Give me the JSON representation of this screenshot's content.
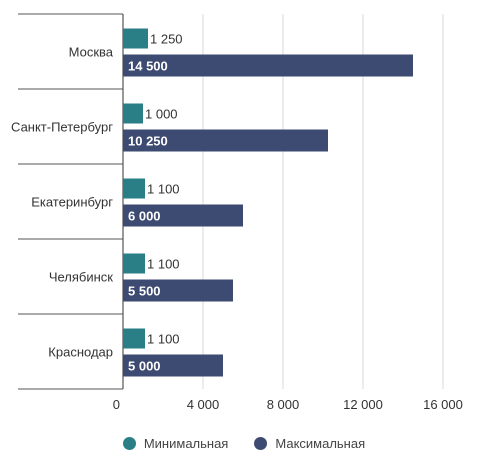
{
  "chart_data": {
    "type": "bar",
    "orientation": "horizontal",
    "categories": [
      "Москва",
      "Санкт-Петербург",
      "Екатеринбург",
      "Челябинск",
      "Краснодар"
    ],
    "series": [
      {
        "name": "Минимальная",
        "color": "#2a7f86",
        "values": [
          1250,
          1000,
          1100,
          1100,
          1100
        ],
        "labels": [
          "1 250",
          "1 000",
          "1 100",
          "1 100",
          "1 100"
        ]
      },
      {
        "name": "Максимальная",
        "color": "#3d4a72",
        "values": [
          14500,
          10250,
          6000,
          5500,
          5000
        ],
        "labels": [
          "14 500",
          "10 250",
          "6 000",
          "5 500",
          "5 000"
        ]
      }
    ],
    "x_ticks": [
      0,
      4000,
      8000,
      12000,
      16000
    ],
    "x_tick_labels": [
      "0",
      "4 000",
      "8 000",
      "12 000",
      "16 000"
    ],
    "xlim": [
      0,
      16000
    ],
    "legend_position": "bottom",
    "grid": "vertical"
  }
}
